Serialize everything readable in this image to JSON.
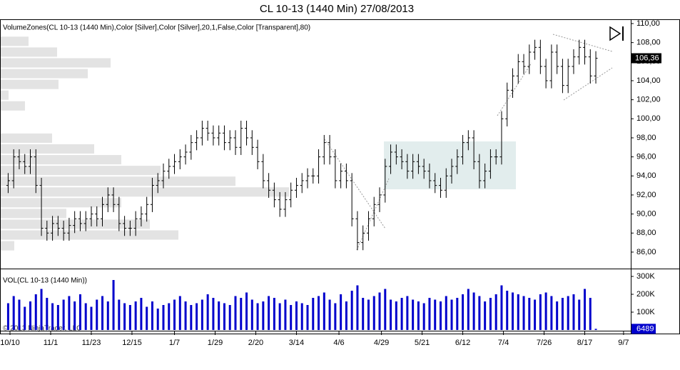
{
  "title": "CL 10-13 (1440 Min)  27/08/2013",
  "copyright": "© 2013 NinjaTrader, LLC",
  "chart_data": [
    {
      "type": "ohlc",
      "indicator_label": "VolumeZones(CL 10-13 (1440 Min),Color [Silver],Color [Silver],20,1,False,Color [Transparent],80)",
      "color": "#000000",
      "x": [
        -1,
        2,
        5,
        8,
        11,
        14,
        17,
        20,
        23,
        26,
        29,
        32,
        35,
        38,
        41,
        44,
        47,
        50,
        53,
        56,
        59,
        62,
        65,
        68,
        71,
        74,
        77,
        80,
        83,
        86,
        89,
        92,
        95,
        98,
        101,
        104,
        107,
        110,
        113,
        116,
        119,
        122,
        125,
        128,
        131,
        134,
        137,
        140,
        143,
        146,
        149,
        152,
        155,
        158,
        161,
        164,
        167,
        170,
        173,
        176,
        179,
        182,
        185,
        188,
        191,
        194,
        197,
        200,
        203,
        206,
        209,
        212,
        215,
        218,
        221,
        224,
        227,
        230,
        233,
        236,
        239,
        242,
        245,
        248,
        251,
        254,
        257,
        260,
        263,
        266,
        269,
        272,
        275,
        278,
        281,
        284,
        287,
        290,
        293,
        296,
        299,
        302,
        305,
        308,
        311,
        314,
        317
      ],
      "ohlc": [
        [
          93,
          94.3,
          92.2,
          93.5
        ],
        [
          93.5,
          96.8,
          92.7,
          96
        ],
        [
          96,
          96.8,
          94.7,
          95.5
        ],
        [
          95.5,
          96.3,
          94.2,
          95
        ],
        [
          95,
          96.8,
          94.2,
          96
        ],
        [
          96,
          96.8,
          92.2,
          93
        ],
        [
          93,
          93.8,
          87.7,
          88.5
        ],
        [
          88.5,
          89.3,
          87.2,
          88
        ],
        [
          88,
          89.8,
          87.2,
          89
        ],
        [
          89,
          89.8,
          87.7,
          88.5
        ],
        [
          88.5,
          89.3,
          87.2,
          88
        ],
        [
          88,
          89.6,
          87.2,
          88.8
        ],
        [
          88.8,
          90.3,
          88,
          89.5
        ],
        [
          89.5,
          90.3,
          88.2,
          89
        ],
        [
          89,
          90.3,
          88.2,
          89.5
        ],
        [
          89.5,
          90.8,
          88.7,
          90
        ],
        [
          90,
          90.8,
          88.7,
          89.5
        ],
        [
          89.5,
          91.8,
          88.7,
          91
        ],
        [
          91,
          92.8,
          90.2,
          92
        ],
        [
          92,
          92.8,
          90.2,
          91
        ],
        [
          91,
          91.8,
          88.2,
          89
        ],
        [
          89,
          89.8,
          87.7,
          88.5
        ],
        [
          88.5,
          89.3,
          87.7,
          88.5
        ],
        [
          88.5,
          90.3,
          87.7,
          89.5
        ],
        [
          89.5,
          90.8,
          88.7,
          90
        ],
        [
          90,
          91.8,
          89.2,
          91
        ],
        [
          91,
          93.8,
          90.2,
          93
        ],
        [
          93,
          94.3,
          92.2,
          93.5
        ],
        [
          93.5,
          95.3,
          92.7,
          94.5
        ],
        [
          94.5,
          95.8,
          93.7,
          95
        ],
        [
          95,
          96.3,
          94.2,
          95.5
        ],
        [
          95.5,
          96.8,
          94.7,
          96
        ],
        [
          96,
          97.3,
          95.2,
          96.5
        ],
        [
          96.5,
          98.3,
          95.7,
          97.5
        ],
        [
          97.5,
          98.8,
          96.7,
          98
        ],
        [
          98,
          99.8,
          97.2,
          99
        ],
        [
          99,
          99.8,
          97.7,
          98.5
        ],
        [
          98.5,
          99.3,
          97.2,
          98
        ],
        [
          98,
          99.3,
          97.2,
          98.5
        ],
        [
          98.5,
          99.3,
          96.7,
          97.5
        ],
        [
          97.5,
          98.8,
          96.7,
          98
        ],
        [
          98,
          98.8,
          96.2,
          97
        ],
        [
          97,
          99.8,
          96.2,
          99
        ],
        [
          99,
          99.8,
          97.2,
          98
        ],
        [
          98,
          98.8,
          96.2,
          97
        ],
        [
          97,
          97.8,
          94.7,
          95.5
        ],
        [
          95.5,
          96.3,
          92.7,
          93.5
        ],
        [
          93.5,
          94.3,
          91.7,
          92.5
        ],
        [
          92.5,
          93.3,
          90.7,
          91.5
        ],
        [
          91.5,
          92.3,
          89.7,
          90.5
        ],
        [
          90.5,
          92.3,
          89.7,
          91.5
        ],
        [
          91.5,
          93.3,
          90.7,
          92.5
        ],
        [
          92.5,
          93.8,
          91.7,
          93
        ],
        [
          93,
          94.3,
          92.2,
          93.5
        ],
        [
          93.5,
          94.8,
          92.7,
          94
        ],
        [
          94,
          94.8,
          93.2,
          94
        ],
        [
          94,
          96.8,
          93.2,
          96
        ],
        [
          96,
          98.3,
          95.2,
          97.5
        ],
        [
          97.5,
          98.3,
          95.2,
          96
        ],
        [
          96,
          96.8,
          92.7,
          93.5
        ],
        [
          93.5,
          95.3,
          92.7,
          94.5
        ],
        [
          94.5,
          95.3,
          92.7,
          93.5
        ],
        [
          93.5,
          94.3,
          88.7,
          89.5
        ],
        [
          89.5,
          90.3,
          86.2,
          87
        ],
        [
          87,
          88.8,
          86.2,
          88
        ],
        [
          88,
          90.3,
          87.2,
          89.5
        ],
        [
          89.5,
          91.8,
          88.7,
          91
        ],
        [
          91,
          92.8,
          90.2,
          92
        ],
        [
          92,
          95.8,
          91.2,
          95
        ],
        [
          95,
          97.3,
          94.2,
          96.5
        ],
        [
          96.5,
          97.3,
          95.2,
          96
        ],
        [
          96,
          96.8,
          94.7,
          95.5
        ],
        [
          95.5,
          96.3,
          93.7,
          94.5
        ],
        [
          94.5,
          96.3,
          93.7,
          95.5
        ],
        [
          95.5,
          96.3,
          94.2,
          95
        ],
        [
          95,
          95.8,
          93.7,
          94.5
        ],
        [
          94.5,
          95.3,
          92.7,
          93.5
        ],
        [
          93.5,
          94.3,
          92.2,
          93
        ],
        [
          93,
          93.8,
          91.7,
          92.5
        ],
        [
          92.5,
          94.8,
          91.7,
          94
        ],
        [
          94,
          95.8,
          93.2,
          95
        ],
        [
          95,
          96.8,
          94.2,
          96
        ],
        [
          96,
          98.3,
          95.2,
          97.5
        ],
        [
          97.5,
          98.8,
          96.7,
          98
        ],
        [
          98,
          98.8,
          94.7,
          95.5
        ],
        [
          95.5,
          96.3,
          92.7,
          93.5
        ],
        [
          93.5,
          95.3,
          92.7,
          94.5
        ],
        [
          94.5,
          96.8,
          93.7,
          96
        ],
        [
          96,
          96.8,
          95.2,
          96
        ],
        [
          96,
          100.8,
          95.2,
          100
        ],
        [
          100,
          103.8,
          99.2,
          103
        ],
        [
          103,
          105.3,
          102.2,
          104.5
        ],
        [
          104.5,
          106.8,
          103.7,
          106
        ],
        [
          106,
          106.8,
          104.7,
          105.5
        ],
        [
          105.5,
          107.8,
          104.7,
          107
        ],
        [
          107,
          108.3,
          106.2,
          107.5
        ],
        [
          107.5,
          108.3,
          104.7,
          105.5
        ],
        [
          105.5,
          106.3,
          103.2,
          104
        ],
        [
          104,
          107.8,
          103.2,
          107
        ],
        [
          107,
          107.8,
          104.7,
          105.5
        ],
        [
          105.5,
          106.3,
          102.7,
          103.5
        ],
        [
          103.5,
          106.3,
          102.7,
          105.5
        ],
        [
          105.5,
          107.3,
          104.7,
          106.5
        ],
        [
          106.5,
          108.3,
          105.7,
          107.5
        ],
        [
          107.5,
          108.3,
          105.7,
          106.5
        ],
        [
          106.5,
          107.3,
          103.7,
          104.5
        ],
        [
          104.5,
          107.1,
          103.7,
          106.36
        ]
      ],
      "last_value_label": "106,36",
      "ylim": [
        84.27,
        110.45
      ],
      "yticks": [
        {
          "value": 86,
          "label": "86,00"
        },
        {
          "value": 88,
          "label": "88,00"
        },
        {
          "value": 90,
          "label": "90,00"
        },
        {
          "value": 92,
          "label": "92,00"
        },
        {
          "value": 94,
          "label": "94,00"
        },
        {
          "value": 96,
          "label": "96,00"
        },
        {
          "value": 98,
          "label": "98,00"
        },
        {
          "value": 100,
          "label": "100,00"
        },
        {
          "value": 102,
          "label": "102,00"
        },
        {
          "value": 104,
          "label": "104,00"
        },
        {
          "value": 106,
          "label": "106,00"
        },
        {
          "value": 108,
          "label": "108,00"
        },
        {
          "value": 110,
          "label": "110,00"
        }
      ],
      "xlim": [
        -5.41,
        335.9
      ],
      "xticks": [
        {
          "value": 0,
          "label": "10/10"
        },
        {
          "value": 22,
          "label": "11/1"
        },
        {
          "value": 44,
          "label": "11/23"
        },
        {
          "value": 66,
          "label": "12/15"
        },
        {
          "value": 89,
          "label": "1/7"
        },
        {
          "value": 111,
          "label": "1/29"
        },
        {
          "value": 133,
          "label": "2/20"
        },
        {
          "value": 155,
          "label": "3/14"
        },
        {
          "value": 178,
          "label": "4/6"
        },
        {
          "value": 201,
          "label": "4/29"
        },
        {
          "value": 223,
          "label": "5/21"
        },
        {
          "value": 245,
          "label": "6/12"
        },
        {
          "value": 267,
          "label": "7/4"
        },
        {
          "value": 289,
          "label": "7/26"
        },
        {
          "value": 311,
          "label": "8/17"
        },
        {
          "value": 332,
          "label": "9/7"
        }
      ],
      "volume_zones": {
        "color": "#e3e3e3",
        "bins": [
          86.1,
          87.23,
          88.36,
          89.49,
          90.62,
          91.75,
          92.88,
          94.01,
          95.14,
          96.27,
          97.4,
          98.53,
          99.66,
          100.79,
          101.92,
          103.05,
          104.18,
          105.31,
          106.44,
          107.57,
          108.7
        ],
        "values": [
          20,
          250,
          210,
          93,
          170,
          405,
          330,
          225,
          170,
          132,
          73,
          0,
          0,
          35,
          12,
          82,
          123,
          155,
          80,
          40
        ]
      }
    },
    {
      "type": "volume",
      "label": "VOL(CL 10-13 (1440 Min))",
      "color": "#0000cc",
      "values": [
        150000,
        190000,
        170000,
        130000,
        160000,
        200000,
        230000,
        180000,
        150000,
        140000,
        170000,
        190000,
        160000,
        200000,
        150000,
        130000,
        170000,
        190000,
        160000,
        280000,
        170000,
        150000,
        140000,
        160000,
        180000,
        130000,
        160000,
        120000,
        140000,
        150000,
        170000,
        190000,
        160000,
        140000,
        150000,
        170000,
        200000,
        180000,
        160000,
        150000,
        140000,
        190000,
        180000,
        210000,
        170000,
        150000,
        160000,
        190000,
        180000,
        150000,
        170000,
        140000,
        160000,
        150000,
        140000,
        180000,
        190000,
        210000,
        170000,
        150000,
        200000,
        160000,
        220000,
        250000,
        180000,
        170000,
        190000,
        210000,
        230000,
        170000,
        160000,
        180000,
        190000,
        170000,
        160000,
        150000,
        180000,
        170000,
        160000,
        190000,
        170000,
        180000,
        200000,
        230000,
        210000,
        190000,
        160000,
        180000,
        200000,
        250000,
        220000,
        210000,
        200000,
        190000,
        180000,
        170000,
        200000,
        210000,
        190000,
        160000,
        180000,
        190000,
        200000,
        170000,
        230000,
        180000,
        6489
      ],
      "ylim": [
        0,
        340000
      ],
      "yticks": [
        {
          "value": 100000,
          "label": "100K"
        },
        {
          "value": 200000,
          "label": "200K"
        },
        {
          "value": 300000,
          "label": "300K"
        }
      ]
    }
  ]
}
